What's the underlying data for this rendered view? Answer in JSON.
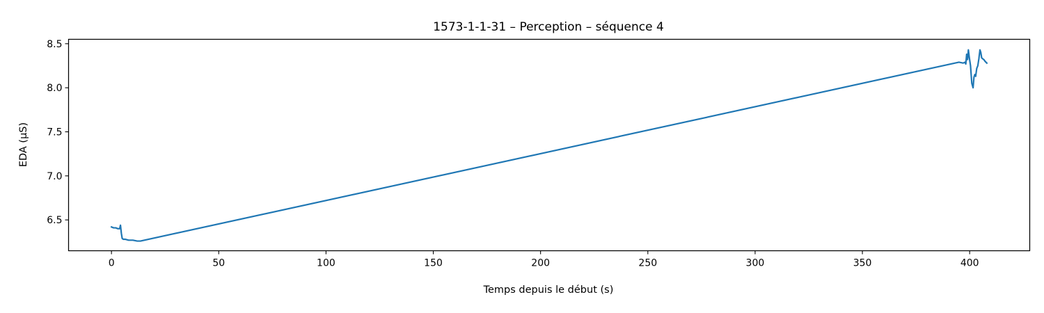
{
  "chart_data": {
    "type": "line",
    "title": "1573-1-1-31 – Perception – séquence 4",
    "xlabel": "Temps depuis le début (s)",
    "ylabel": "EDA (µS)",
    "xlim": [
      -20,
      428
    ],
    "ylim": [
      6.15,
      8.55
    ],
    "xticks": [
      0,
      50,
      100,
      150,
      200,
      250,
      300,
      350,
      400
    ],
    "xtick_labels": [
      "0",
      "50",
      "100",
      "150",
      "200",
      "250",
      "300",
      "350",
      "400"
    ],
    "yticks": [
      6.5,
      7.0,
      7.5,
      8.0,
      8.5
    ],
    "ytick_labels": [
      "6.5",
      "7.0",
      "7.5",
      "8.0",
      "8.5"
    ],
    "grid": false,
    "legend": "none",
    "series": [
      {
        "color": "#1f77b4",
        "x": [
          0,
          1,
          2,
          3,
          3.8,
          4.2,
          4.6,
          5.0,
          5.5,
          6.5,
          8,
          10,
          12,
          13.5,
          395,
          397,
          397.8,
          398.2,
          398.6,
          399.0,
          399.4,
          399.8,
          400.4,
          401.0,
          401.6,
          402.0,
          402.4,
          402.8,
          403.3,
          403.8,
          404.3,
          404.8,
          405.2,
          405.6,
          406.0,
          406.6,
          407.2,
          408
        ],
        "y": [
          6.42,
          6.41,
          6.41,
          6.4,
          6.4,
          6.44,
          6.35,
          6.29,
          6.28,
          6.28,
          6.27,
          6.27,
          6.26,
          6.26,
          8.29,
          8.28,
          8.29,
          8.27,
          8.38,
          8.32,
          8.43,
          8.35,
          8.25,
          8.05,
          8.0,
          8.12,
          8.15,
          8.13,
          8.22,
          8.25,
          8.33,
          8.43,
          8.4,
          8.34,
          8.33,
          8.32,
          8.3,
          8.28
        ]
      }
    ]
  }
}
